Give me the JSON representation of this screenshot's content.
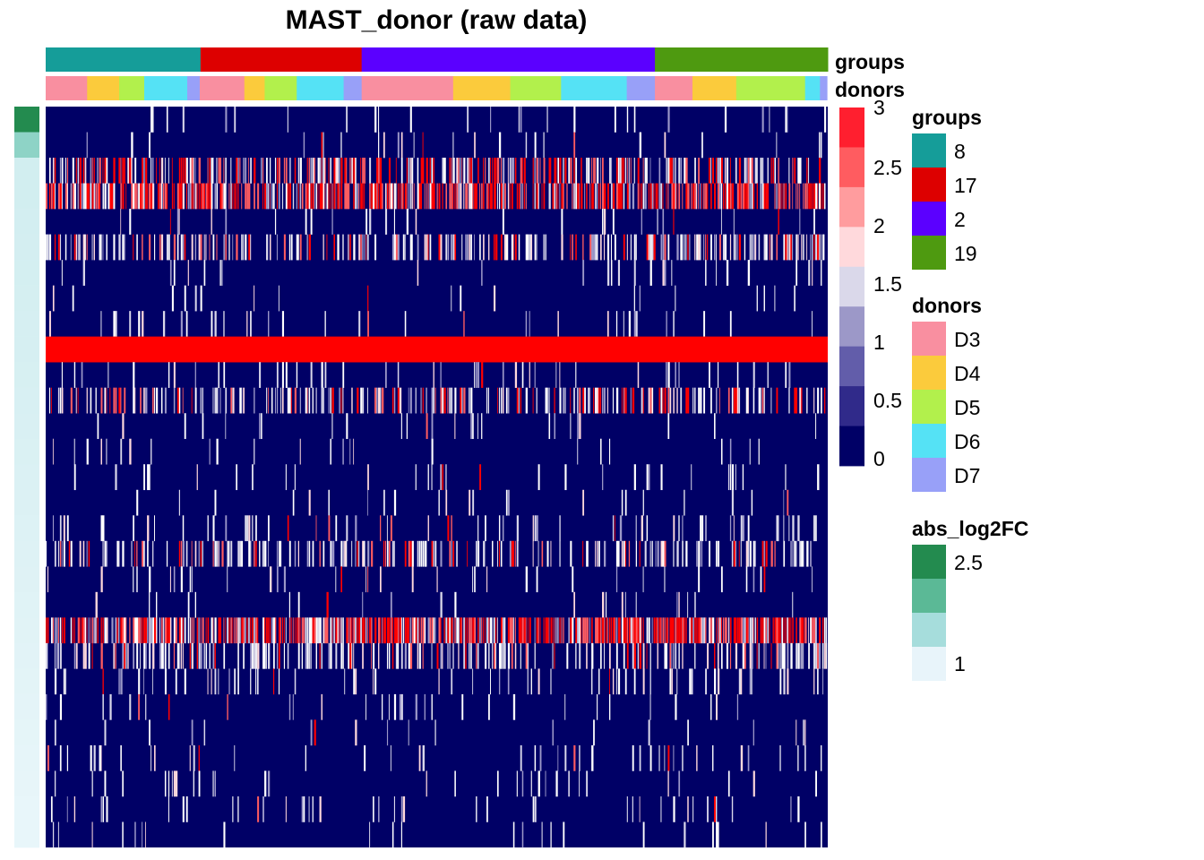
{
  "chart_data": {
    "type": "heatmap",
    "title": "MAST_donor (raw data)",
    "annotation_labels": {
      "groups": "groups",
      "donors": "donors"
    },
    "groups": {
      "title": "groups",
      "levels": [
        {
          "label": "8",
          "color": "#159d99",
          "fraction": 0.198
        },
        {
          "label": "17",
          "color": "#dd0000",
          "fraction": 0.206
        },
        {
          "label": "2",
          "color": "#5b00ff",
          "fraction": 0.375
        },
        {
          "label": "19",
          "color": "#4e9a10",
          "fraction": 0.221
        }
      ]
    },
    "donors": {
      "title": "donors",
      "levels": [
        {
          "label": "D3",
          "color": "#f98fa0"
        },
        {
          "label": "D4",
          "color": "#fbcb3c"
        },
        {
          "label": "D5",
          "color": "#b2f04c"
        },
        {
          "label": "D6",
          "color": "#55e2f5"
        },
        {
          "label": "D7",
          "color": "#98a0f8"
        }
      ],
      "sequence": [
        {
          "donor": "D3",
          "fraction": 0.053
        },
        {
          "donor": "D4",
          "fraction": 0.041
        },
        {
          "donor": "D5",
          "fraction": 0.032
        },
        {
          "donor": "D6",
          "fraction": 0.055
        },
        {
          "donor": "D7",
          "fraction": 0.016
        },
        {
          "donor": "D3",
          "fraction": 0.057
        },
        {
          "donor": "D4",
          "fraction": 0.026
        },
        {
          "donor": "D5",
          "fraction": 0.041
        },
        {
          "donor": "D6",
          "fraction": 0.06
        },
        {
          "donor": "D7",
          "fraction": 0.023
        },
        {
          "donor": "D3",
          "fraction": 0.117
        },
        {
          "donor": "D4",
          "fraction": 0.073
        },
        {
          "donor": "D5",
          "fraction": 0.065
        },
        {
          "donor": "D6",
          "fraction": 0.084
        },
        {
          "donor": "D7",
          "fraction": 0.036
        },
        {
          "donor": "D3",
          "fraction": 0.048
        },
        {
          "donor": "D4",
          "fraction": 0.056
        },
        {
          "donor": "D5",
          "fraction": 0.088
        },
        {
          "donor": "D6",
          "fraction": 0.019
        },
        {
          "donor": "D7",
          "fraction": 0.009
        }
      ]
    },
    "color_scale": {
      "ticks": [
        "3",
        "2.5",
        "2",
        "1.5",
        "1",
        "0.5",
        "0"
      ],
      "colors": [
        "#ff1f2f",
        "#ff5c60",
        "#ff9c9e",
        "#ffd9dc",
        "#dad8ea",
        "#9c98c8",
        "#625daa",
        "#302a8a",
        "#000066"
      ]
    },
    "abs_log2FC": {
      "title": "abs_log2FC",
      "ticks": [
        "2.5",
        "1"
      ],
      "colors": [
        "#238b4f",
        "#5bb996",
        "#a6dddc",
        "#e8f4fa"
      ]
    },
    "rows": [
      {
        "density": 0.05,
        "high": 0.1,
        "log2fc": "#238b4f"
      },
      {
        "density": 0.05,
        "high": 0.05,
        "log2fc": "#8ed3c6"
      },
      {
        "density": 0.6,
        "high": 0.55,
        "log2fc": "#d2eef0"
      },
      {
        "density": 0.8,
        "high": 0.7,
        "log2fc": "#d2eef0"
      },
      {
        "density": 0.05,
        "high": 0.05,
        "log2fc": "#d3eef1"
      },
      {
        "density": 0.45,
        "high": 0.25,
        "log2fc": "#d4eef1"
      },
      {
        "density": 0.05,
        "high": 0.05,
        "log2fc": "#d4eff1"
      },
      {
        "density": 0.06,
        "high": 0.05,
        "log2fc": "#d5eff1"
      },
      {
        "density": 0.06,
        "high": 0.05,
        "log2fc": "#d6eff2"
      },
      {
        "density": 1.0,
        "high": 1.0,
        "log2fc": "#d6eff2"
      },
      {
        "density": 0.15,
        "high": 0.1,
        "log2fc": "#d7f0f2"
      },
      {
        "density": 0.45,
        "high": 0.3,
        "log2fc": "#d8f0f3"
      },
      {
        "density": 0.05,
        "high": 0.05,
        "log2fc": "#d9f0f3"
      },
      {
        "density": 0.05,
        "high": 0.05,
        "log2fc": "#daf1f3"
      },
      {
        "density": 0.06,
        "high": 0.05,
        "log2fc": "#dbf1f4"
      },
      {
        "density": 0.05,
        "high": 0.05,
        "log2fc": "#dcf1f4"
      },
      {
        "density": 0.12,
        "high": 0.1,
        "log2fc": "#ddf2f5"
      },
      {
        "density": 0.4,
        "high": 0.2,
        "log2fc": "#def2f5"
      },
      {
        "density": 0.08,
        "high": 0.05,
        "log2fc": "#dff2f5"
      },
      {
        "density": 0.04,
        "high": 0.05,
        "log2fc": "#e0f3f6"
      },
      {
        "density": 0.85,
        "high": 0.65,
        "log2fc": "#e1f3f6"
      },
      {
        "density": 0.35,
        "high": 0.15,
        "log2fc": "#e2f3f7"
      },
      {
        "density": 0.15,
        "high": 0.1,
        "log2fc": "#e3f4f7"
      },
      {
        "density": 0.08,
        "high": 0.1,
        "log2fc": "#e4f4f8"
      },
      {
        "density": 0.05,
        "high": 0.05,
        "log2fc": "#e5f5f8"
      },
      {
        "density": 0.08,
        "high": 0.05,
        "log2fc": "#e6f5f9"
      },
      {
        "density": 0.05,
        "high": 0.05,
        "log2fc": "#e7f5f9"
      },
      {
        "density": 0.07,
        "high": 0.05,
        "log2fc": "#e8f6fa"
      },
      {
        "density": 0.06,
        "high": 0.05,
        "log2fc": "#e8f6fa"
      }
    ]
  }
}
